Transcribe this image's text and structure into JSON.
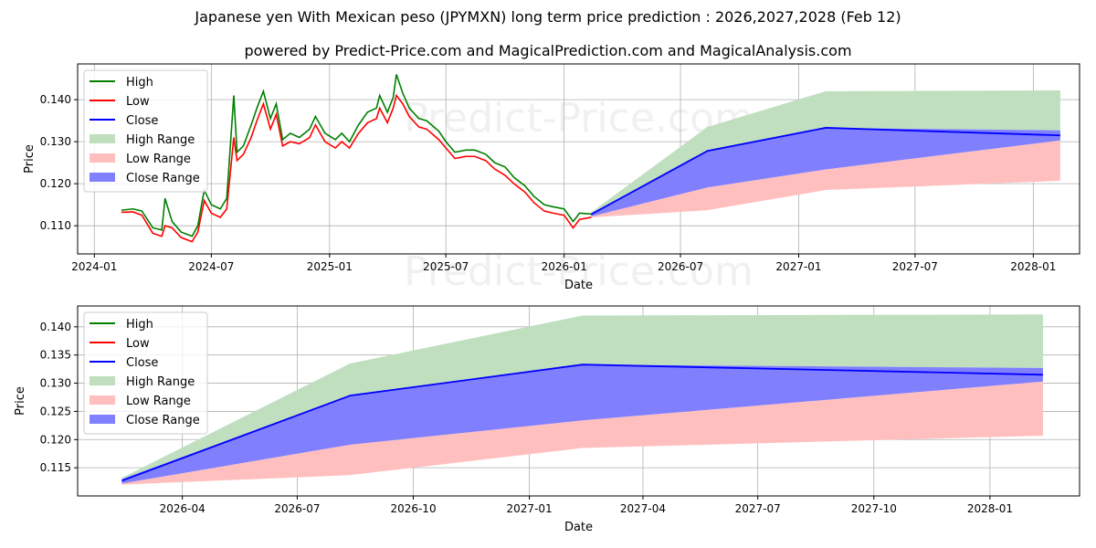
{
  "title": "Japanese yen With Mexican peso (JPYMXN) long term price prediction : 2026,2027,2028 (Feb 12)",
  "subtitle": "powered by Predict-Price.com and MagicalPrediction.com and MagicalAnalysis.com",
  "watermark": "Predict-Price.com",
  "colors": {
    "high": "#008000",
    "low": "#ff0000",
    "close": "#0000ff",
    "high_range": "#bfdfbf",
    "low_range": "#ffbfbf",
    "close_range": "#8080ff"
  },
  "legend": [
    "High",
    "Low",
    "Close",
    "High Range",
    "Low Range",
    "Close Range"
  ],
  "chart_data": [
    {
      "type": "line",
      "xlabel": "Date",
      "ylabel": "Price",
      "xlim": [
        "2023-12-06",
        "2028-03-13"
      ],
      "ylim": [
        0.1033,
        0.1485
      ],
      "xticks": [
        "2024-01",
        "2024-07",
        "2025-01",
        "2025-07",
        "2026-01",
        "2026-07",
        "2027-01",
        "2027-07",
        "2028-01"
      ],
      "yticks": [
        "0.110",
        "0.120",
        "0.130",
        "0.140"
      ],
      "grid": true,
      "legend_position": "top-left",
      "history": {
        "dates": [
          "2024-02-12",
          "2024-03-01",
          "2024-03-15",
          "2024-04-01",
          "2024-04-15",
          "2024-04-20",
          "2024-05-01",
          "2024-05-15",
          "2024-06-01",
          "2024-06-10",
          "2024-06-20",
          "2024-07-01",
          "2024-07-15",
          "2024-07-25",
          "2024-08-05",
          "2024-08-10",
          "2024-08-20",
          "2024-09-01",
          "2024-09-10",
          "2024-09-20",
          "2024-10-01",
          "2024-10-10",
          "2024-10-20",
          "2024-11-01",
          "2024-11-15",
          "2024-12-01",
          "2024-12-10",
          "2024-12-25",
          "2025-01-10",
          "2025-01-20",
          "2025-02-01",
          "2025-02-15",
          "2025-03-01",
          "2025-03-15",
          "2025-03-20",
          "2025-04-01",
          "2025-04-10",
          "2025-04-15",
          "2025-04-25",
          "2025-05-05",
          "2025-05-20",
          "2025-06-01",
          "2025-06-20",
          "2025-07-01",
          "2025-07-15",
          "2025-08-01",
          "2025-08-15",
          "2025-09-01",
          "2025-09-15",
          "2025-10-01",
          "2025-10-15",
          "2025-11-01",
          "2025-11-15",
          "2025-12-01",
          "2025-12-15",
          "2026-01-01",
          "2026-01-15",
          "2026-01-25",
          "2026-02-12"
        ],
        "high": [
          0.1137,
          0.114,
          0.1135,
          0.1095,
          0.109,
          0.1165,
          0.111,
          0.1085,
          0.1075,
          0.11,
          0.1185,
          0.115,
          0.114,
          0.1165,
          0.141,
          0.1275,
          0.129,
          0.134,
          0.138,
          0.142,
          0.1355,
          0.139,
          0.1305,
          0.132,
          0.131,
          0.133,
          0.136,
          0.132,
          0.1305,
          0.132,
          0.13,
          0.134,
          0.137,
          0.138,
          0.141,
          0.137,
          0.1405,
          0.146,
          0.1415,
          0.138,
          0.1355,
          0.135,
          0.1325,
          0.13,
          0.1275,
          0.128,
          0.128,
          0.127,
          0.125,
          0.124,
          0.1215,
          0.1195,
          0.117,
          0.115,
          0.1145,
          0.114,
          0.111,
          0.113,
          0.1128
        ],
        "low": [
          0.1132,
          0.1133,
          0.1125,
          0.1082,
          0.1075,
          0.11,
          0.1095,
          0.1072,
          0.1062,
          0.1085,
          0.116,
          0.113,
          0.112,
          0.114,
          0.131,
          0.1255,
          0.127,
          0.131,
          0.135,
          0.139,
          0.133,
          0.1365,
          0.129,
          0.13,
          0.1295,
          0.131,
          0.134,
          0.13,
          0.1285,
          0.13,
          0.1285,
          0.132,
          0.1345,
          0.1355,
          0.138,
          0.1345,
          0.138,
          0.141,
          0.139,
          0.136,
          0.1335,
          0.133,
          0.1305,
          0.1285,
          0.126,
          0.1265,
          0.1265,
          0.1255,
          0.1235,
          0.122,
          0.12,
          0.118,
          0.1155,
          0.1135,
          0.113,
          0.1125,
          0.1095,
          0.1115,
          0.112
        ]
      },
      "forecast": {
        "dates": [
          "2026-02-12",
          "2026-08-12",
          "2027-02-12",
          "2028-02-12"
        ],
        "close": [
          0.1127,
          0.1278,
          0.1333,
          0.1315
        ],
        "close_range_high": [
          0.113,
          0.1278,
          0.1333,
          0.1327
        ],
        "close_range_low": [
          0.1122,
          0.1191,
          0.1234,
          0.1303
        ],
        "high_range_high": [
          0.1132,
          0.1335,
          0.142,
          0.1422
        ],
        "low_range_low": [
          0.112,
          0.1137,
          0.1185,
          0.1207
        ]
      }
    },
    {
      "type": "line",
      "xlabel": "Date",
      "ylabel": "Price",
      "xlim": [
        "2026-01-08",
        "2028-03-12"
      ],
      "ylim": [
        0.11,
        0.1437
      ],
      "xticks": [
        "2026-04",
        "2026-07",
        "2026-10",
        "2027-01",
        "2027-04",
        "2027-07",
        "2027-10",
        "2028-01"
      ],
      "yticks": [
        "0.115",
        "0.120",
        "0.125",
        "0.130",
        "0.135",
        "0.140"
      ],
      "grid": true,
      "legend_position": "top-left"
    }
  ]
}
